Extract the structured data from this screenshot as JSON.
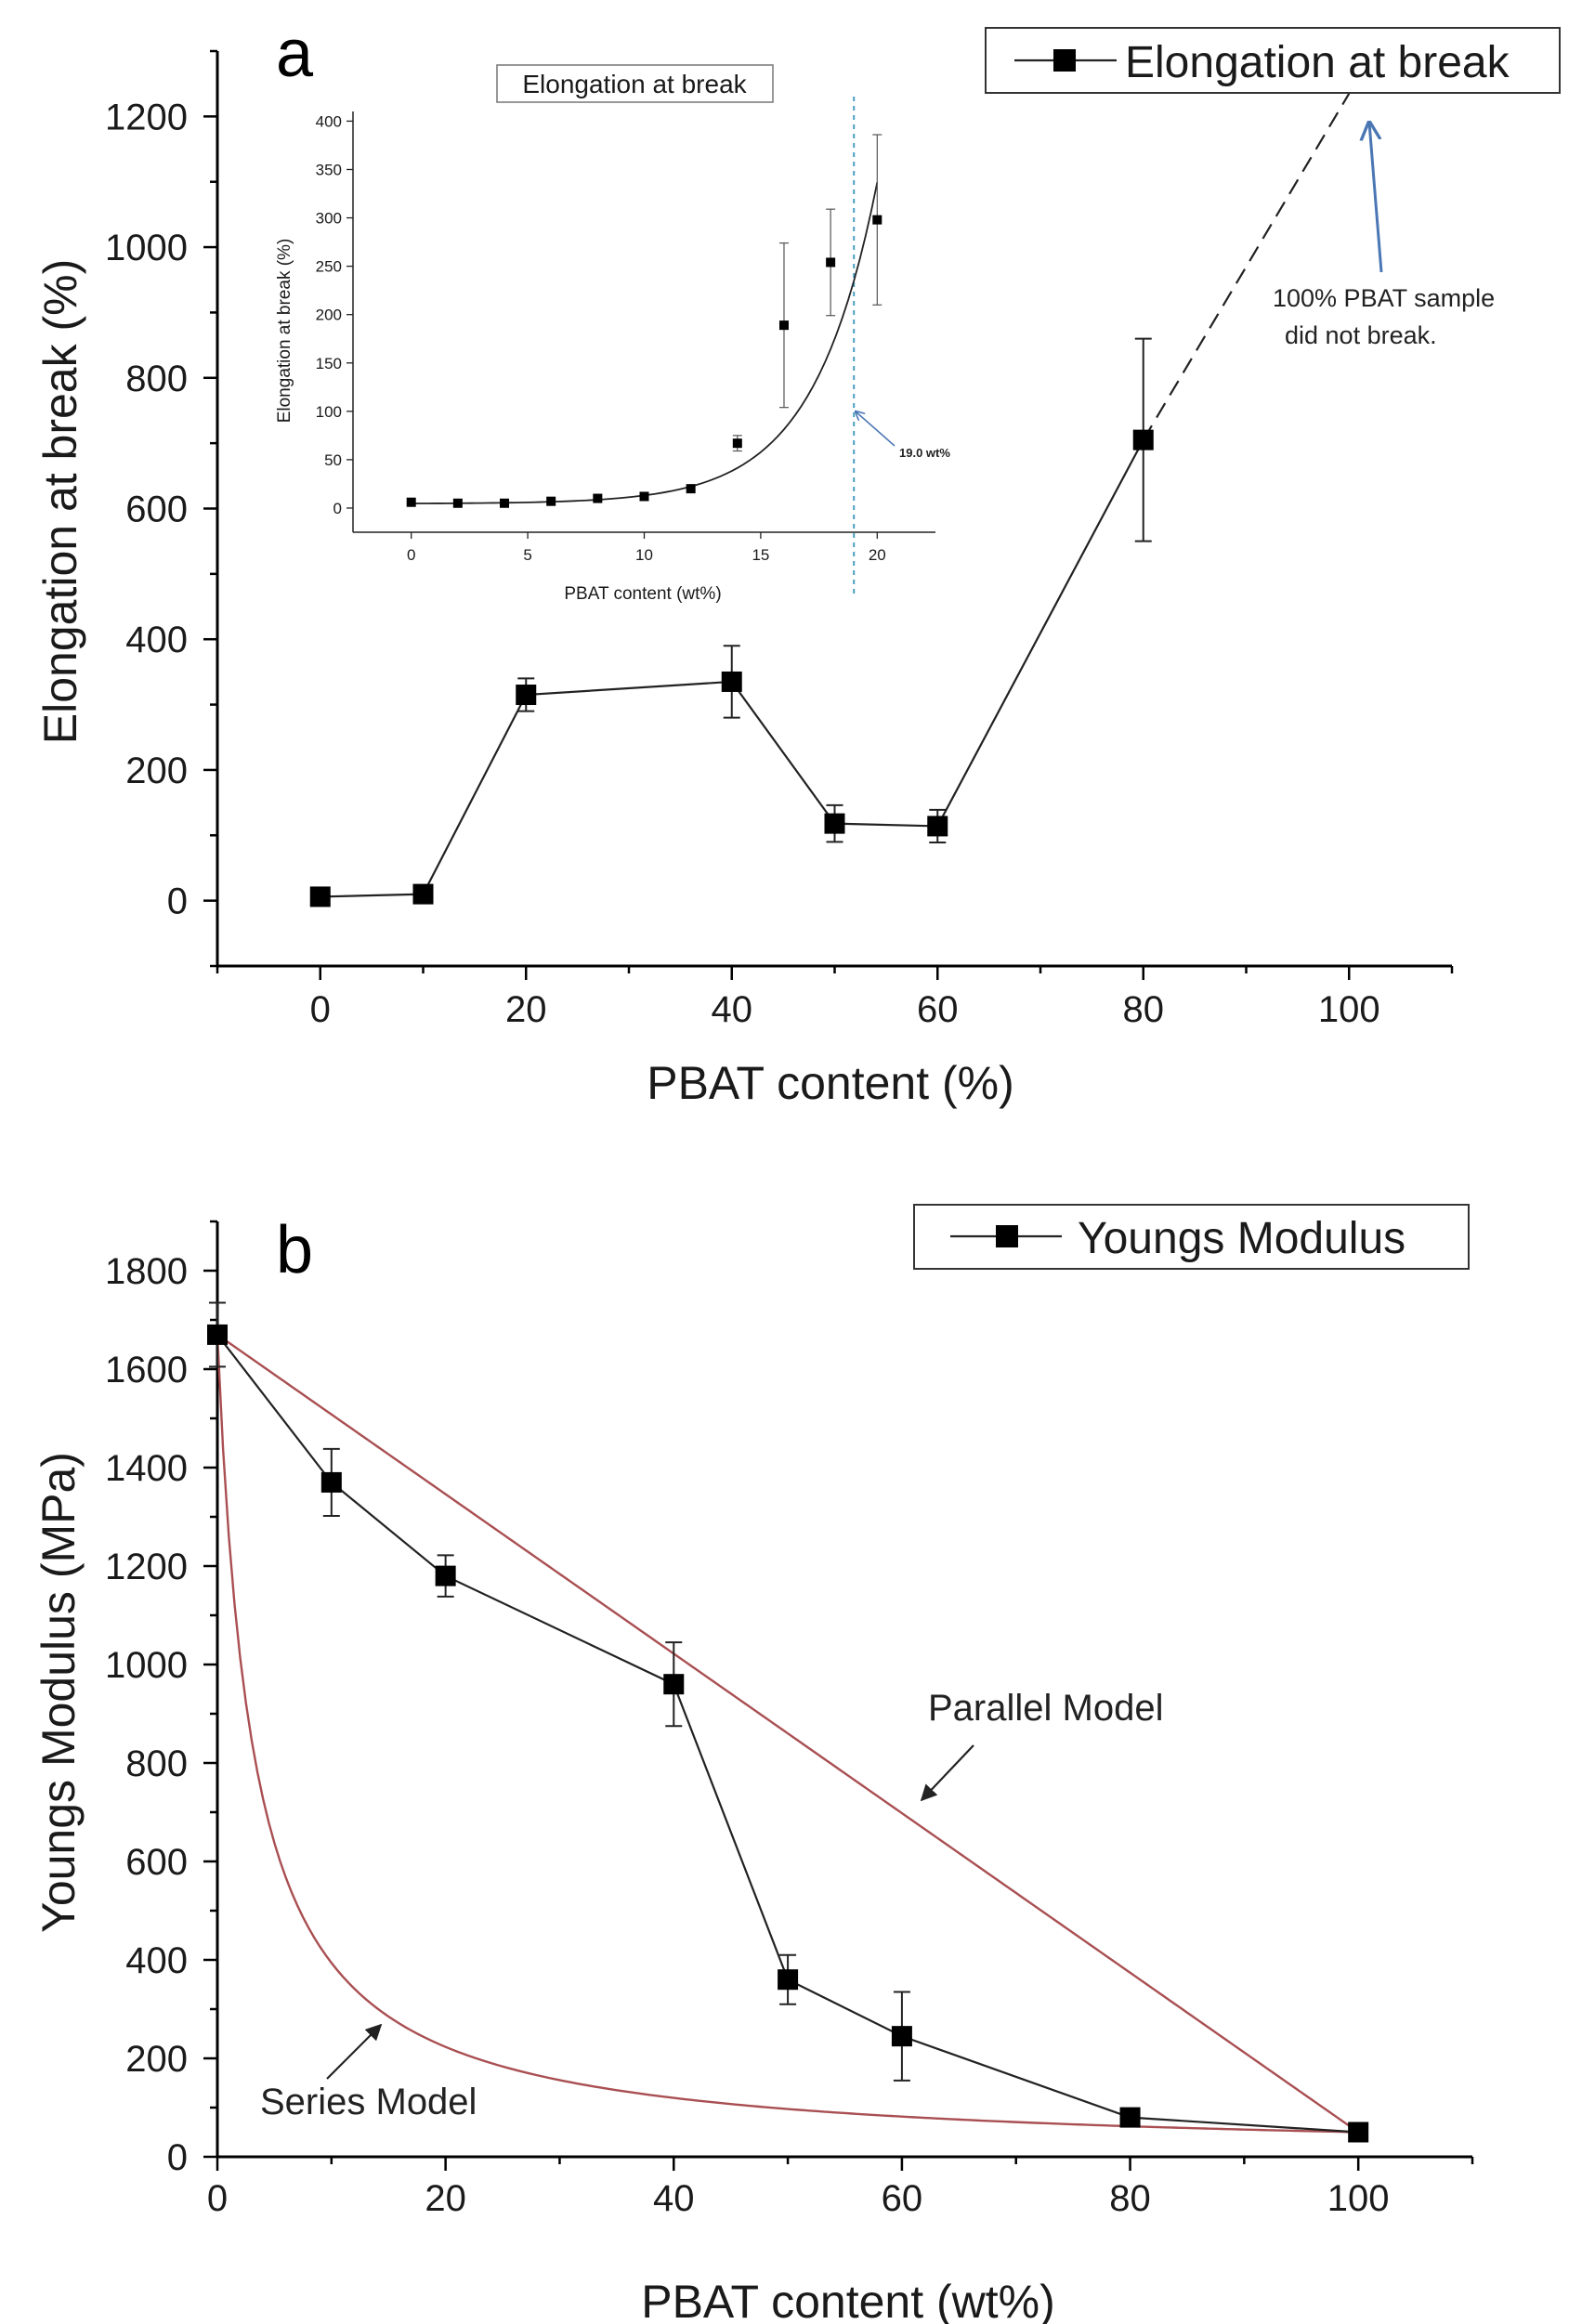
{
  "chart_data": [
    {
      "panel": "a",
      "type": "line",
      "title": "",
      "xlabel": "PBAT content (%)",
      "ylabel": "Elongation at break (%)",
      "xlim": [
        -10,
        110
      ],
      "ylim": [
        -100,
        1300
      ],
      "xticks": [
        0,
        20,
        40,
        60,
        80,
        100
      ],
      "yticks": [
        0,
        200,
        400,
        600,
        800,
        1000,
        1200
      ],
      "legend": "top-right",
      "series": [
        {
          "name": "Elongation at break",
          "x": [
            0,
            10,
            20,
            40,
            50,
            60,
            80
          ],
          "values": [
            6,
            10,
            315,
            335,
            118,
            114,
            705
          ],
          "err": [
            3,
            4,
            25,
            55,
            28,
            25,
            155
          ]
        }
      ],
      "extrapolation": {
        "x": [
          80,
          100
        ],
        "values": [
          705,
          1235
        ],
        "style": "dashed"
      },
      "annotations": [
        "100% PBAT sample",
        "did not break."
      ],
      "inset": {
        "type": "scatter",
        "title": "Elongation at break",
        "xlabel": "PBAT content (wt%)",
        "ylabel": "Elongation at break (%)",
        "xlim": [
          -2.5,
          22.5
        ],
        "ylim": [
          -25,
          410
        ],
        "xticks": [
          0,
          5,
          10,
          15,
          20
        ],
        "yticks": [
          0,
          50,
          100,
          150,
          200,
          250,
          300,
          350,
          400
        ],
        "x": [
          0,
          2,
          4,
          6,
          8,
          10,
          12,
          14,
          16,
          18,
          20
        ],
        "values": [
          6,
          5,
          5,
          7,
          10,
          12,
          20,
          67,
          189,
          254,
          298
        ],
        "err": [
          0,
          0,
          0,
          0,
          0,
          0,
          0,
          8,
          85,
          55,
          88
        ],
        "fit": "exponential",
        "threshold_x": 19.0,
        "threshold_label": "19.0 wt%"
      }
    },
    {
      "panel": "b",
      "type": "line",
      "title": "",
      "xlabel": "PBAT content (wt%)",
      "ylabel": "Youngs Modulus (MPa)",
      "xlim": [
        0,
        110
      ],
      "ylim": [
        0,
        1900
      ],
      "xticks": [
        0,
        20,
        40,
        60,
        80,
        100
      ],
      "yticks": [
        0,
        200,
        400,
        600,
        800,
        1000,
        1200,
        1400,
        1600,
        1800
      ],
      "legend": "top-right",
      "series": [
        {
          "name": "Youngs Modulus",
          "x": [
            0,
            10,
            20,
            40,
            50,
            60,
            80,
            100
          ],
          "values": [
            1670,
            1370,
            1180,
            960,
            360,
            245,
            80,
            50
          ],
          "err": [
            65,
            68,
            42,
            85,
            50,
            90,
            10,
            8
          ]
        }
      ],
      "models": [
        {
          "name": "Parallel Model",
          "E_matrix": 1670,
          "E_filler": 50
        },
        {
          "name": "Series Model",
          "E_matrix": 1670,
          "E_filler": 50
        }
      ]
    }
  ],
  "labels": {
    "panel_a": "a",
    "panel_b": "b",
    "legend_a": "Elongation at break",
    "legend_b": "Youngs Modulus",
    "annot_line1": "100% PBAT sample",
    "annot_line2": "did not break.",
    "parallel_model": "Parallel Model",
    "series_model": "Series Model",
    "inset_threshold": "19.0 wt%"
  },
  "colors": {
    "model_curve": "#a94f52",
    "annotation_arrow": "#4a77b4",
    "threshold_line": "#4a9ec2"
  }
}
